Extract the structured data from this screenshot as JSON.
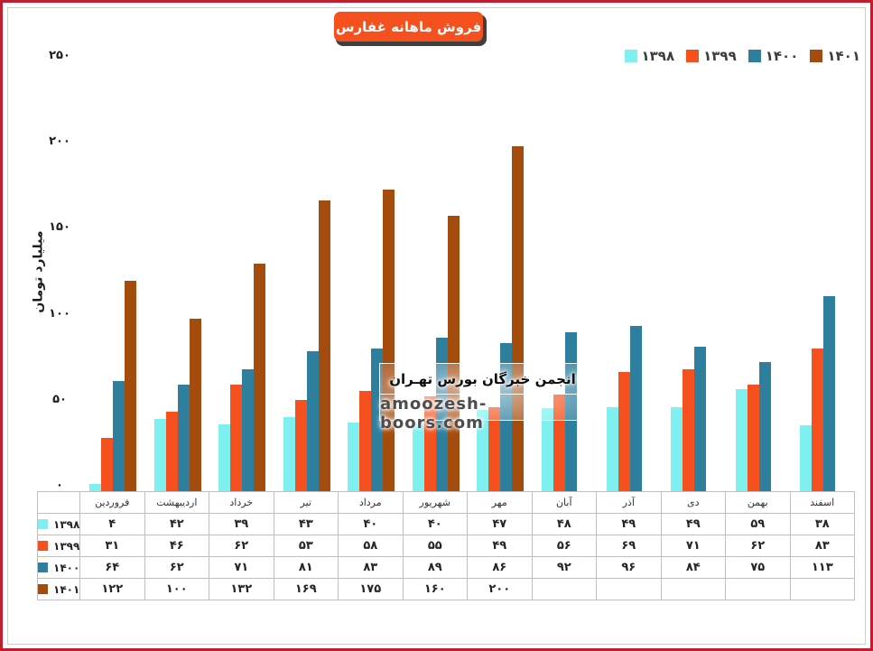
{
  "frame": {
    "border_color": "#BE1E2D",
    "inner_border_color": "#CBD0CD"
  },
  "title": {
    "text": "فروش ماهانه غفارس",
    "bg_color": "#F4511E",
    "text_color": "#FFFFFF"
  },
  "legend": {
    "items": [
      {
        "label": "۱۳۹۸",
        "color": "#7EF0F0"
      },
      {
        "label": "۱۳۹۹",
        "color": "#F4511E"
      },
      {
        "label": "۱۴۰۰",
        "color": "#2E7F9E"
      },
      {
        "label": "۱۴۰۱",
        "color": "#A44B0E"
      }
    ]
  },
  "y_axis": {
    "title": "میلیارد تومان",
    "ticks": [
      "۲۵۰",
      "۲۰۰",
      "۱۵۰",
      "۱۰۰",
      "۵۰",
      "۰"
    ]
  },
  "watermark": {
    "org": "انجمن خبرگان بورس تهـران",
    "site": "amoozesh-boors.com"
  },
  "chart_data": {
    "type": "bar",
    "title": "فروش ماهانه غفارس",
    "xlabel": "",
    "ylabel": "میلیارد تومان",
    "ylim": [
      0,
      250
    ],
    "y_tick_step": 50,
    "grid": false,
    "legend_position": "top-right",
    "categories": [
      "فروردین",
      "اردیبهشت",
      "خرداد",
      "تیر",
      "مرداد",
      "شهریور",
      "مهر",
      "آبان",
      "آذر",
      "دی",
      "بهمن",
      "اسفند"
    ],
    "series": [
      {
        "name": "۱۳۹۸",
        "year": "1398",
        "color": "#7EF0F0",
        "values": [
          4,
          42,
          39,
          43,
          40,
          40,
          47,
          48,
          49,
          49,
          59,
          38
        ]
      },
      {
        "name": "۱۳۹۹",
        "year": "1399",
        "color": "#F4511E",
        "values": [
          31,
          46,
          62,
          53,
          58,
          55,
          49,
          56,
          69,
          71,
          62,
          83
        ]
      },
      {
        "name": "۱۴۰۰",
        "year": "1400",
        "color": "#2E7F9E",
        "values": [
          64,
          62,
          71,
          81,
          83,
          89,
          86,
          92,
          96,
          84,
          75,
          113
        ]
      },
      {
        "name": "۱۴۰۱",
        "year": "1401",
        "color": "#A44B0E",
        "values": [
          122,
          100,
          132,
          169,
          175,
          160,
          200,
          null,
          null,
          null,
          null,
          null
        ]
      }
    ]
  },
  "table": {
    "rows": [
      {
        "label": "۱۳۹۸",
        "color": "#7EF0F0",
        "cells": [
          "۴",
          "۴۲",
          "۳۹",
          "۴۳",
          "۴۰",
          "۴۰",
          "۴۷",
          "۴۸",
          "۴۹",
          "۴۹",
          "۵۹",
          "۳۸"
        ]
      },
      {
        "label": "۱۳۹۹",
        "color": "#F4511E",
        "cells": [
          "۳۱",
          "۴۶",
          "۶۲",
          "۵۳",
          "۵۸",
          "۵۵",
          "۴۹",
          "۵۶",
          "۶۹",
          "۷۱",
          "۶۲",
          "۸۳"
        ]
      },
      {
        "label": "۱۴۰۰",
        "color": "#2E7F9E",
        "cells": [
          "۶۴",
          "۶۲",
          "۷۱",
          "۸۱",
          "۸۳",
          "۸۹",
          "۸۶",
          "۹۲",
          "۹۶",
          "۸۴",
          "۷۵",
          "۱۱۳"
        ]
      },
      {
        "label": "۱۴۰۱",
        "color": "#A44B0E",
        "cells": [
          "۱۲۲",
          "۱۰۰",
          "۱۳۲",
          "۱۶۹",
          "۱۷۵",
          "۱۶۰",
          "۲۰۰",
          "",
          "",
          "",
          "",
          ""
        ]
      }
    ]
  }
}
